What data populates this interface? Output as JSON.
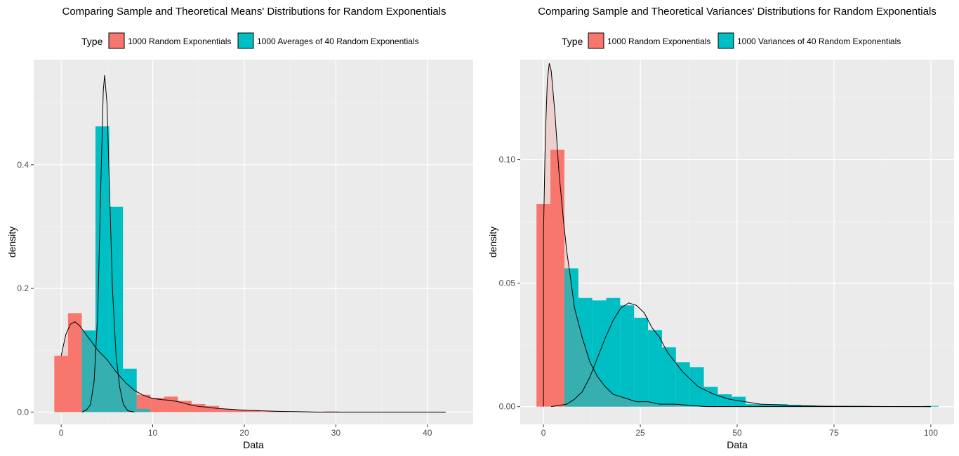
{
  "chart_data": [
    {
      "type": "histogram+density",
      "title": "Comparing Sample and Theoretical Means' Distributions for Random Exponentials",
      "xlabel": "Data",
      "ylabel": "density",
      "xlim": [
        -3,
        45
      ],
      "ylim": [
        -0.02,
        0.57
      ],
      "x_ticks": [
        0,
        10,
        20,
        30,
        40
      ],
      "x_tick_labels": [
        "0",
        "10",
        "20",
        "30",
        "40"
      ],
      "y_ticks": [
        0,
        0.2,
        0.4
      ],
      "y_tick_labels": [
        "0.0",
        "0.2",
        "0.4"
      ],
      "grid": true,
      "legend": {
        "position": "top",
        "title": "Type",
        "entries": [
          {
            "label": "1000  Random Exponentials",
            "color": "#F8766D"
          },
          {
            "label": "1000  Averages of  40  Random Exponentials",
            "color": "#00BFC4"
          }
        ]
      },
      "series": [
        {
          "name": "1000  Random Exponentials",
          "color": "#F8766D",
          "bins": [
            [
              -0.75,
              0.75,
              0.091
            ],
            [
              0.75,
              2.25,
              0.16
            ],
            [
              2.25,
              3.75,
              0.11
            ],
            [
              3.75,
              5.25,
              0.095
            ],
            [
              5.25,
              6.75,
              0.072
            ],
            [
              6.75,
              8.25,
              0.04
            ],
            [
              8.25,
              9.75,
              0.028
            ],
            [
              9.75,
              11.25,
              0.023
            ],
            [
              11.25,
              12.75,
              0.025
            ],
            [
              12.75,
              14.25,
              0.018
            ],
            [
              14.25,
              15.75,
              0.013
            ],
            [
              15.75,
              17.25,
              0.01
            ],
            [
              17.25,
              18.75,
              0.005
            ],
            [
              18.75,
              20.25,
              0.004
            ],
            [
              20.25,
              21.75,
              0.003
            ],
            [
              21.75,
              23.25,
              0.001
            ],
            [
              23.25,
              24.75,
              0.001
            ],
            [
              28.75,
              30.25,
              0.001
            ]
          ],
          "density": [
            [
              0.0,
              0.091
            ],
            [
              0.5,
              0.125
            ],
            [
              1.0,
              0.142
            ],
            [
              1.5,
              0.146
            ],
            [
              2.0,
              0.14
            ],
            [
              3.0,
              0.12
            ],
            [
              4.0,
              0.1
            ],
            [
              5.0,
              0.085
            ],
            [
              6.0,
              0.065
            ],
            [
              7.0,
              0.048
            ],
            [
              8.0,
              0.035
            ],
            [
              9.0,
              0.027
            ],
            [
              10.0,
              0.022
            ],
            [
              11.0,
              0.02
            ],
            [
              12.0,
              0.019
            ],
            [
              13.0,
              0.016
            ],
            [
              14.0,
              0.012
            ],
            [
              15.0,
              0.009
            ],
            [
              16.0,
              0.008
            ],
            [
              17.0,
              0.006
            ],
            [
              18.0,
              0.005
            ],
            [
              20.0,
              0.003
            ],
            [
              22.0,
              0.002
            ],
            [
              24.0,
              0.001
            ],
            [
              26.0,
              0.0005
            ],
            [
              28.0,
              0.0
            ],
            [
              42.0,
              0.0
            ]
          ]
        },
        {
          "name": "1000  Averages of  40  Random Exponentials",
          "color": "#00BFC4",
          "bins": [
            [
              2.25,
              3.75,
              0.132
            ],
            [
              3.75,
              5.25,
              0.462
            ],
            [
              5.25,
              6.75,
              0.332
            ],
            [
              6.75,
              8.25,
              0.07
            ],
            [
              8.25,
              9.75,
              0.005
            ]
          ],
          "density": [
            [
              2.3,
              0.0
            ],
            [
              2.8,
              0.004
            ],
            [
              3.2,
              0.012
            ],
            [
              3.6,
              0.05
            ],
            [
              4.0,
              0.16
            ],
            [
              4.3,
              0.35
            ],
            [
              4.6,
              0.52
            ],
            [
              4.75,
              0.545
            ],
            [
              5.0,
              0.5
            ],
            [
              5.3,
              0.35
            ],
            [
              5.6,
              0.2
            ],
            [
              6.0,
              0.09
            ],
            [
              6.4,
              0.04
            ],
            [
              6.8,
              0.012
            ],
            [
              7.3,
              0.002
            ],
            [
              8.0,
              0.0
            ]
          ]
        }
      ]
    },
    {
      "type": "histogram+density",
      "title": "Comparing Sample and Theoretical Variances' Distributions for Random Exponentials",
      "xlabel": "Data",
      "ylabel": "density",
      "xlim": [
        -6,
        106
      ],
      "ylim": [
        -0.0072,
        0.1405
      ],
      "x_ticks": [
        0,
        25,
        50,
        75,
        100
      ],
      "x_tick_labels": [
        "0",
        "25",
        "50",
        "75",
        "100"
      ],
      "y_ticks": [
        0,
        0.05,
        0.1
      ],
      "y_tick_labels": [
        "0.00",
        "0.05",
        "0.10"
      ],
      "grid": true,
      "legend": {
        "position": "top",
        "title": "Type",
        "entries": [
          {
            "label": "1000  Random Exponentials",
            "color": "#F8766D"
          },
          {
            "label": "1000  Variances of  40  Random Exponentials",
            "color": "#00BFC4"
          }
        ]
      },
      "series": [
        {
          "name": "1000  Random Exponentials",
          "color": "#F8766D",
          "bins": [
            [
              -1.8,
              1.8,
              0.082
            ],
            [
              1.8,
              5.4,
              0.104
            ],
            [
              5.4,
              9.0,
              0.052
            ],
            [
              9.0,
              12.6,
              0.028
            ],
            [
              12.6,
              16.2,
              0.013
            ],
            [
              16.2,
              19.8,
              0.007
            ],
            [
              19.8,
              23.4,
              0.004
            ],
            [
              23.4,
              27.0,
              0.003
            ],
            [
              27.0,
              30.6,
              0.002
            ],
            [
              30.6,
              34.2,
              0.001
            ],
            [
              37.8,
              41.4,
              0.001
            ]
          ],
          "density": [
            [
              0.0,
              0.0
            ],
            [
              0.0,
              0.07
            ],
            [
              0.5,
              0.11
            ],
            [
              1.0,
              0.132
            ],
            [
              1.5,
              0.139
            ],
            [
              2.0,
              0.136
            ],
            [
              3.0,
              0.118
            ],
            [
              4.0,
              0.095
            ],
            [
              5.0,
              0.078
            ],
            [
              6.0,
              0.063
            ],
            [
              7.0,
              0.052
            ],
            [
              8.0,
              0.04
            ],
            [
              10.0,
              0.028
            ],
            [
              12.0,
              0.018
            ],
            [
              14.0,
              0.012
            ],
            [
              16.0,
              0.008
            ],
            [
              18.0,
              0.005
            ],
            [
              20.0,
              0.004
            ],
            [
              22.0,
              0.003
            ],
            [
              24.0,
              0.002
            ],
            [
              27.0,
              0.002
            ],
            [
              30.0,
              0.001
            ],
            [
              34.0,
              0.001
            ],
            [
              38.0,
              0.0005
            ],
            [
              42.0,
              0.0
            ],
            [
              100.0,
              0.0
            ]
          ]
        },
        {
          "name": "1000  Variances of  40  Random Exponentials",
          "color": "#00BFC4",
          "bins": [
            [
              5.4,
              9.0,
              0.056
            ],
            [
              9.0,
              12.6,
              0.044
            ],
            [
              12.6,
              16.2,
              0.043
            ],
            [
              16.2,
              19.8,
              0.044
            ],
            [
              19.8,
              23.4,
              0.041
            ],
            [
              23.4,
              27.0,
              0.036
            ],
            [
              27.0,
              30.6,
              0.031
            ],
            [
              30.6,
              34.2,
              0.024
            ],
            [
              34.2,
              37.8,
              0.018
            ],
            [
              37.8,
              41.4,
              0.016
            ],
            [
              41.4,
              45.0,
              0.008
            ],
            [
              45.0,
              48.6,
              0.005
            ],
            [
              48.6,
              52.2,
              0.004
            ],
            [
              52.2,
              55.8,
              0.001
            ],
            [
              55.8,
              59.4,
              0.001
            ],
            [
              59.4,
              63.0,
              0.001
            ],
            [
              63.0,
              66.6,
              0.0007
            ],
            [
              66.6,
              70.2,
              0.0005
            ],
            [
              70.2,
              73.8,
              0.0003
            ],
            [
              77.4,
              81.0,
              0.0003
            ],
            [
              81.0,
              84.6,
              0.0003
            ],
            [
              98.4,
              102.0,
              0.0003
            ]
          ],
          "density": [
            [
              2.0,
              0.0
            ],
            [
              4.0,
              0.0005
            ],
            [
              6.0,
              0.001
            ],
            [
              8.0,
              0.003
            ],
            [
              10.0,
              0.006
            ],
            [
              12.0,
              0.012
            ],
            [
              14.0,
              0.02
            ],
            [
              16.0,
              0.028
            ],
            [
              18.0,
              0.035
            ],
            [
              20.0,
              0.04
            ],
            [
              22.0,
              0.042
            ],
            [
              24.0,
              0.041
            ],
            [
              26.0,
              0.038
            ],
            [
              28.0,
              0.032
            ],
            [
              30.0,
              0.028
            ],
            [
              32.0,
              0.022
            ],
            [
              34.0,
              0.018
            ],
            [
              36.0,
              0.014
            ],
            [
              38.0,
              0.011
            ],
            [
              40.0,
              0.008
            ],
            [
              44.0,
              0.005
            ],
            [
              48.0,
              0.003
            ],
            [
              52.0,
              0.002
            ],
            [
              56.0,
              0.001
            ],
            [
              60.0,
              0.0008
            ],
            [
              66.0,
              0.0004
            ],
            [
              72.0,
              0.0002
            ],
            [
              80.0,
              0.0001
            ],
            [
              100.0,
              0.0
            ]
          ]
        }
      ]
    }
  ]
}
